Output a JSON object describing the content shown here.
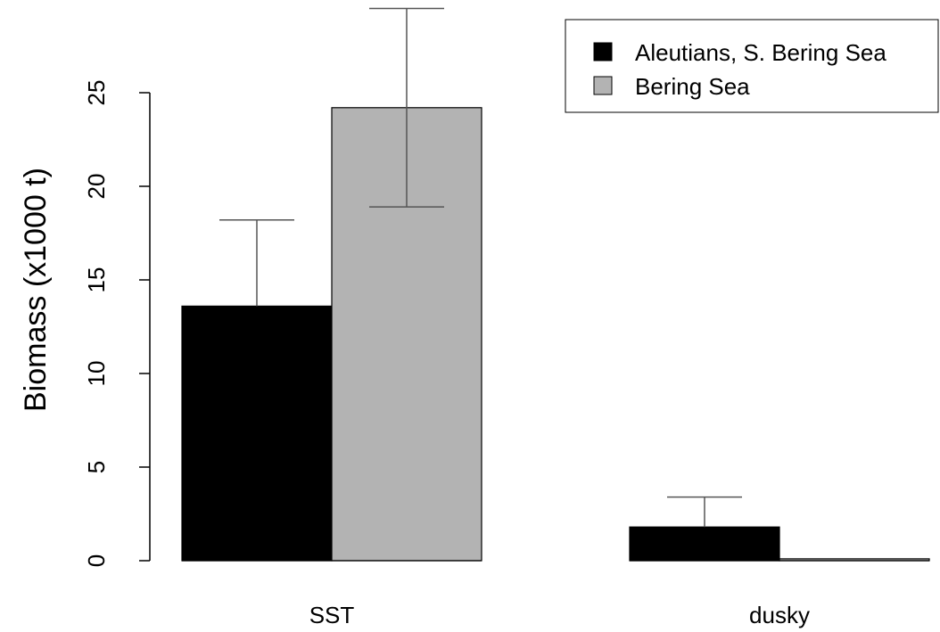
{
  "chart_data": {
    "type": "bar",
    "ylabel": "Biomass (x1000 t)",
    "xlabel": "",
    "categories": [
      "SST",
      "dusky"
    ],
    "ylim": [
      0,
      25
    ],
    "yticks": [
      "0",
      "5",
      "10",
      "15",
      "20",
      "25"
    ],
    "series": [
      {
        "name": "Aleutians, S. Bering Sea",
        "color": "#000000",
        "values": [
          13.6,
          1.8
        ],
        "error_low": [
          13.6,
          1.8
        ],
        "error_high": [
          18.2,
          3.4
        ]
      },
      {
        "name": "Bering Sea",
        "color": "#b3b3b3",
        "values": [
          24.2,
          0.1
        ],
        "error_low": [
          18.9,
          0.1
        ],
        "error_high": [
          29.5,
          0.1
        ]
      }
    ],
    "legend": "top-right",
    "grid": false
  }
}
